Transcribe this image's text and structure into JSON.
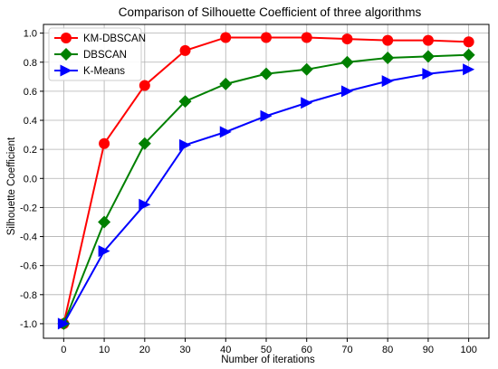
{
  "chart_data": {
    "type": "line",
    "title": "Comparison of Silhouette Coefficient of three algorithms",
    "xlabel": "Number of iterations",
    "ylabel": "Silhouette Coefficient",
    "x": [
      0,
      10,
      20,
      30,
      40,
      50,
      60,
      70,
      80,
      90,
      100
    ],
    "xlim": [
      -5,
      105
    ],
    "ylim": [
      -1.1,
      1.06
    ],
    "xticks": [
      0,
      10,
      20,
      30,
      40,
      50,
      60,
      70,
      80,
      90,
      100
    ],
    "yticks": [
      -1.0,
      -0.8,
      -0.6,
      -0.4,
      -0.2,
      0.0,
      0.2,
      0.4,
      0.6,
      0.8,
      1.0
    ],
    "grid": true,
    "legend": "top-left",
    "series": [
      {
        "name": "KM-DBSCAN",
        "color": "#ff0000",
        "marker": "circle",
        "values": [
          -1.0,
          0.24,
          0.64,
          0.88,
          0.97,
          0.97,
          0.97,
          0.96,
          0.95,
          0.95,
          0.94
        ]
      },
      {
        "name": "DBSCAN",
        "color": "#008000",
        "marker": "diamond",
        "values": [
          -1.0,
          -0.3,
          0.24,
          0.53,
          0.65,
          0.72,
          0.75,
          0.8,
          0.83,
          0.84,
          0.85
        ]
      },
      {
        "name": "K-Means",
        "color": "#0000ff",
        "marker": "triangle-right",
        "values": [
          -1.0,
          -0.5,
          -0.18,
          0.23,
          0.32,
          0.43,
          0.52,
          0.6,
          0.67,
          0.72,
          0.75
        ]
      }
    ]
  }
}
